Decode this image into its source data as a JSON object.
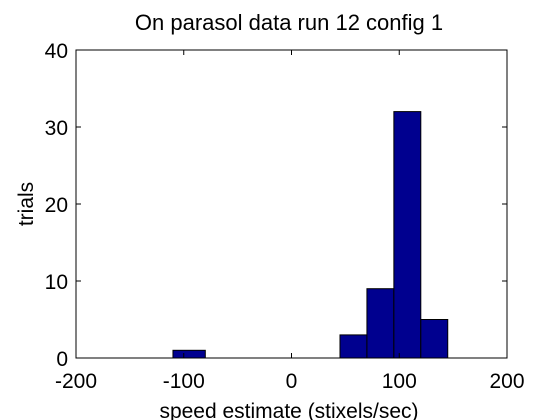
{
  "chart_data": {
    "type": "bar",
    "title": "On parasol data run 12 config 1",
    "xlabel": "speed estimate (stixels/sec)",
    "ylabel": "trials",
    "xlim": [
      -200,
      200
    ],
    "ylim": [
      0,
      40
    ],
    "xticks": [
      -200,
      -100,
      0,
      100,
      200
    ],
    "yticks": [
      0,
      10,
      20,
      30,
      40
    ],
    "grid": false,
    "bar_color": "#00008F",
    "bins": [
      {
        "left": -110,
        "right": -80,
        "count": 1
      },
      {
        "left": 45,
        "right": 70,
        "count": 3
      },
      {
        "left": 70,
        "right": 95,
        "count": 9
      },
      {
        "left": 95,
        "right": 120,
        "count": 32
      },
      {
        "left": 120,
        "right": 145,
        "count": 5
      }
    ]
  }
}
